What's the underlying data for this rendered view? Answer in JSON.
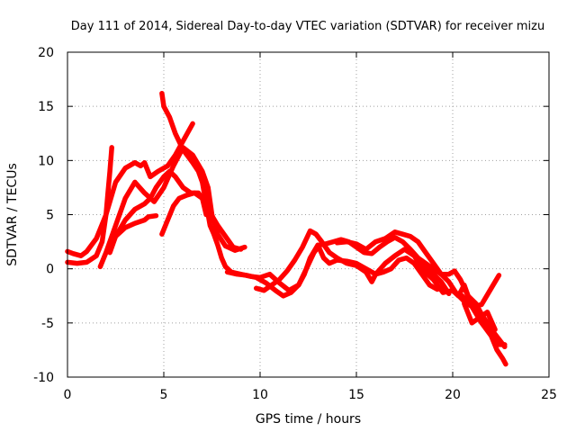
{
  "chart_data": {
    "type": "line",
    "title": "Day 111 of 2014, Sidereal Day-to-day VTEC variation (SDTVAR) for receiver mizu",
    "xlabel": "GPS time / hours",
    "ylabel": "SDTVAR / TECUs",
    "xlim": [
      0,
      25
    ],
    "ylim": [
      -10,
      20
    ],
    "xticks": [
      "0",
      "5",
      "10",
      "15",
      "20",
      "25"
    ],
    "yticks": [
      "-10",
      "-5",
      "0",
      "5",
      "10",
      "15",
      "20"
    ],
    "grid": true,
    "color": "#ff0000",
    "series": [
      {
        "points": [
          [
            0,
            0.6
          ],
          [
            0.5,
            0.5
          ],
          [
            1,
            0.6
          ],
          [
            1.5,
            1.2
          ],
          [
            1.8,
            2.5
          ],
          [
            2,
            5
          ],
          [
            2.1,
            7
          ],
          [
            2.2,
            9
          ],
          [
            2.3,
            11.2
          ]
        ]
      },
      {
        "points": [
          [
            0,
            1.6
          ],
          [
            0.3,
            1.4
          ],
          [
            0.7,
            1.2
          ],
          [
            1,
            1.6
          ],
          [
            1.5,
            2.8
          ],
          [
            2,
            5
          ],
          [
            2.5,
            8
          ],
          [
            3,
            9.3
          ],
          [
            3.5,
            9.8
          ],
          [
            3.8,
            9.5
          ],
          [
            4,
            9.8
          ],
          [
            4.3,
            8.5
          ],
          [
            4.7,
            9
          ],
          [
            5.2,
            9.5
          ],
          [
            5.6,
            10.5
          ],
          [
            6,
            11.8
          ],
          [
            6.5,
            13.4
          ]
        ]
      },
      {
        "points": [
          [
            1.7,
            0.2
          ],
          [
            2,
            1.5
          ],
          [
            2.5,
            4
          ],
          [
            3,
            6.5
          ],
          [
            3.5,
            8
          ],
          [
            4,
            7
          ],
          [
            4.5,
            6.2
          ],
          [
            5,
            7.5
          ],
          [
            5.5,
            9.5
          ],
          [
            6,
            11.2
          ],
          [
            6.5,
            10.5
          ],
          [
            7,
            9
          ],
          [
            7.3,
            7.5
          ],
          [
            7.5,
            5
          ],
          [
            7.8,
            3.2
          ],
          [
            8.2,
            2.1
          ],
          [
            8.7,
            1.7
          ],
          [
            9.2,
            2
          ]
        ]
      },
      {
        "points": [
          [
            2.2,
            1.5
          ],
          [
            2.5,
            3
          ],
          [
            3,
            4.5
          ],
          [
            3.5,
            5.5
          ],
          [
            4,
            6
          ],
          [
            4.3,
            6.5
          ],
          [
            4.6,
            7.5
          ],
          [
            5,
            8.5
          ],
          [
            5.3,
            9
          ],
          [
            5.6,
            8.5
          ],
          [
            6,
            7.5
          ],
          [
            6.4,
            7
          ],
          [
            6.8,
            7
          ],
          [
            7,
            6.5
          ],
          [
            7.2,
            5
          ]
        ]
      },
      {
        "points": [
          [
            2.5,
            3
          ],
          [
            3,
            3.8
          ],
          [
            3.5,
            4.2
          ],
          [
            4,
            4.5
          ],
          [
            4.2,
            4.8
          ],
          [
            4.6,
            4.9
          ]
        ]
      },
      {
        "points": [
          [
            4.9,
            16.2
          ],
          [
            5,
            15
          ],
          [
            5.3,
            14
          ],
          [
            5.6,
            12.5
          ],
          [
            6,
            11
          ],
          [
            6.5,
            9.8
          ],
          [
            6.8,
            9
          ],
          [
            7,
            8
          ],
          [
            7.2,
            6
          ],
          [
            7.4,
            4
          ],
          [
            7.6,
            3.2
          ],
          [
            7.8,
            2.2
          ],
          [
            8,
            1
          ],
          [
            8.2,
            0.2
          ],
          [
            8.5,
            -0.3
          ],
          [
            9,
            -0.5
          ],
          [
            9.5,
            -0.7
          ],
          [
            10,
            -0.8
          ],
          [
            10.5,
            -0.5
          ],
          [
            11,
            -1.3
          ],
          [
            11.5,
            -2
          ],
          [
            12,
            -1.5
          ],
          [
            12.3,
            -0.5
          ],
          [
            12.6,
            1
          ],
          [
            13,
            2.2
          ],
          [
            13.3,
            1
          ],
          [
            13.6,
            0.5
          ],
          [
            14,
            0.8
          ],
          [
            14.5,
            0.7
          ],
          [
            15,
            0.5
          ],
          [
            15.5,
            0
          ],
          [
            16,
            -0.5
          ],
          [
            16.5,
            0.5
          ],
          [
            17,
            1.2
          ],
          [
            17.5,
            1.8
          ],
          [
            18,
            1.2
          ],
          [
            18.5,
            -0.2
          ],
          [
            19,
            -1
          ],
          [
            19.5,
            -2.2
          ],
          [
            20,
            -2
          ],
          [
            20.3,
            -2.5
          ],
          [
            20.6,
            -1.5
          ],
          [
            20.9,
            -3
          ],
          [
            21.3,
            -4
          ],
          [
            21.6,
            -4.5
          ],
          [
            22,
            -5.8
          ],
          [
            22.4,
            -7
          ],
          [
            22.7,
            -7
          ]
        ]
      },
      {
        "points": [
          [
            4.9,
            3.2
          ],
          [
            5.2,
            4.5
          ],
          [
            5.5,
            5.8
          ],
          [
            5.8,
            6.5
          ],
          [
            6.2,
            6.8
          ],
          [
            6.6,
            7
          ],
          [
            7,
            6.5
          ],
          [
            7.4,
            5.2
          ],
          [
            7.8,
            4
          ],
          [
            8.2,
            3
          ],
          [
            8.6,
            2
          ],
          [
            9,
            1.8
          ]
        ]
      },
      {
        "points": [
          [
            8.3,
            -0.3
          ],
          [
            8.8,
            -0.5
          ],
          [
            9.3,
            -0.6
          ],
          [
            9.8,
            -0.8
          ],
          [
            10.3,
            -1.3
          ],
          [
            10.8,
            -2
          ],
          [
            11.2,
            -2.5
          ],
          [
            11.6,
            -2.2
          ],
          [
            12,
            -1.5
          ],
          [
            12.4,
            0
          ],
          [
            12.8,
            1.5
          ],
          [
            13.1,
            2.2
          ],
          [
            13.4,
            2.3
          ],
          [
            13.8,
            2.5
          ],
          [
            14.2,
            2.7
          ],
          [
            14.6,
            2.5
          ],
          [
            15,
            2
          ],
          [
            15.4,
            1.5
          ],
          [
            15.8,
            1.4
          ],
          [
            16.2,
            2
          ],
          [
            16.6,
            2.5
          ],
          [
            17,
            2.9
          ],
          [
            17.4,
            2.5
          ],
          [
            17.8,
            1.8
          ],
          [
            18.2,
            1
          ],
          [
            18.6,
            0
          ],
          [
            19,
            -0.5
          ],
          [
            19.4,
            -1.2
          ],
          [
            19.8,
            -2.3
          ]
        ]
      },
      {
        "points": [
          [
            9.8,
            -1.8
          ],
          [
            10.2,
            -2
          ],
          [
            10.6,
            -1.5
          ],
          [
            11,
            -1
          ],
          [
            11.4,
            -0.2
          ],
          [
            11.8,
            0.8
          ],
          [
            12.2,
            2
          ],
          [
            12.6,
            3.5
          ],
          [
            12.9,
            3.2
          ],
          [
            13.2,
            2.5
          ],
          [
            13.6,
            1.5
          ],
          [
            14,
            1
          ],
          [
            14.5,
            0.5
          ],
          [
            15,
            0.3
          ],
          [
            15.5,
            -0.3
          ],
          [
            15.8,
            -1.2
          ],
          [
            16,
            -0.5
          ],
          [
            16.4,
            -0.3
          ],
          [
            16.8,
            0
          ],
          [
            17.2,
            0.8
          ],
          [
            17.6,
            1
          ],
          [
            18,
            0.5
          ],
          [
            18.4,
            -0.5
          ],
          [
            18.8,
            -1.5
          ],
          [
            19.2,
            -1.9
          ]
        ]
      },
      {
        "points": [
          [
            14,
            2.4
          ],
          [
            14.5,
            2.5
          ],
          [
            15,
            2.3
          ],
          [
            15.5,
            1.8
          ],
          [
            16,
            2.5
          ],
          [
            16.5,
            2.8
          ],
          [
            17,
            3.4
          ],
          [
            17.4,
            3.2
          ],
          [
            17.8,
            3
          ],
          [
            18.2,
            2.5
          ],
          [
            18.6,
            1.5
          ],
          [
            19,
            0.5
          ],
          [
            19.4,
            -0.5
          ],
          [
            19.8,
            -1.2
          ],
          [
            20.2,
            -2.3
          ],
          [
            20.6,
            -3
          ],
          [
            21,
            -3.5
          ],
          [
            21.5,
            -5
          ],
          [
            22,
            -6.2
          ],
          [
            22.3,
            -7.5
          ],
          [
            22.6,
            -8.3
          ],
          [
            22.75,
            -8.8
          ]
        ]
      },
      {
        "points": [
          [
            18.2,
            1
          ],
          [
            18.6,
            0.5
          ],
          [
            19,
            0
          ],
          [
            19.4,
            -0.5
          ],
          [
            19.8,
            -0.5
          ],
          [
            20.1,
            -0.2
          ],
          [
            20.4,
            -1
          ],
          [
            20.8,
            -2.5
          ],
          [
            21.2,
            -3.2
          ],
          [
            21.5,
            -4.2
          ],
          [
            21.8,
            -5
          ],
          [
            22.1,
            -5.8
          ],
          [
            22.4,
            -6.5
          ],
          [
            22.7,
            -7.2
          ]
        ]
      },
      {
        "points": [
          [
            20.5,
            -2.5
          ],
          [
            21,
            -3.5
          ],
          [
            21.5,
            -3.3
          ],
          [
            22,
            -1.8
          ],
          [
            22.4,
            -0.6
          ]
        ]
      },
      {
        "points": [
          [
            20.6,
            -3.2
          ],
          [
            21,
            -5
          ],
          [
            21.4,
            -4.5
          ],
          [
            21.8,
            -4
          ],
          [
            22.2,
            -5.6
          ]
        ]
      }
    ]
  }
}
